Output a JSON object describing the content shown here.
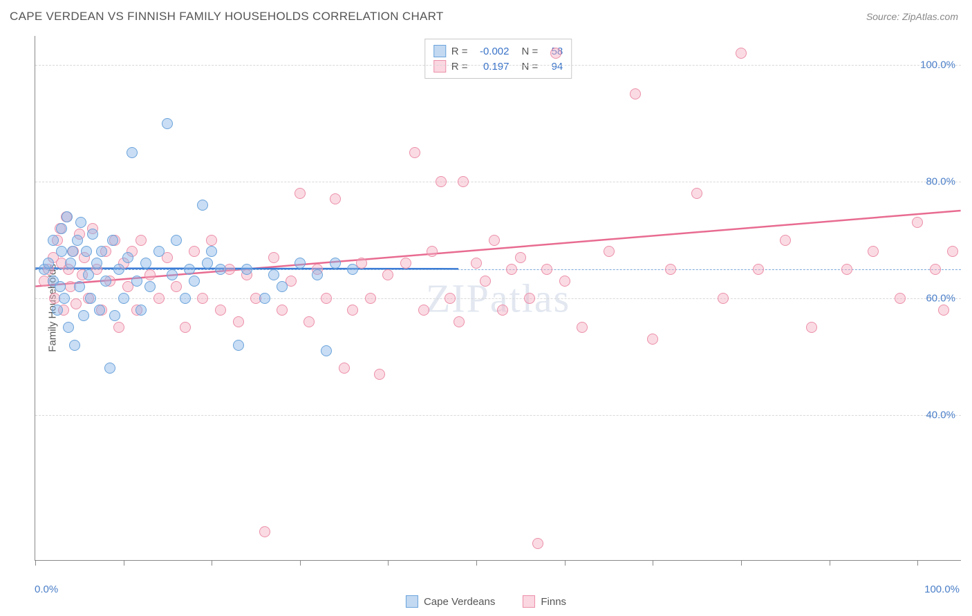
{
  "title": "CAPE VERDEAN VS FINNISH FAMILY HOUSEHOLDS CORRELATION CHART",
  "source": "Source: ZipAtlas.com",
  "watermark": "ZIPatlas",
  "chart": {
    "type": "scatter",
    "ylabel": "Family Households",
    "xlim": [
      0,
      105
    ],
    "ylim": [
      15,
      105
    ],
    "x_axis_labels": {
      "min": "0.0%",
      "max": "100.0%"
    },
    "yticks": [
      {
        "value": 40,
        "label": "40.0%"
      },
      {
        "value": 60,
        "label": "60.0%"
      },
      {
        "value": 80,
        "label": "80.0%"
      },
      {
        "value": 100,
        "label": "100.0%"
      }
    ],
    "xtick_positions": [
      0,
      10,
      20,
      30,
      40,
      50,
      60,
      70,
      80,
      90,
      100
    ],
    "dashed_reference_y": 65,
    "colors": {
      "blue_fill": "rgba(135,180,230,0.45)",
      "blue_stroke": "#6aa3db",
      "pink_fill": "rgba(245,175,195,0.45)",
      "pink_stroke": "#ec8fa8",
      "blue_line": "#3a7bd5",
      "pink_line": "#e86b91",
      "grid": "#d8d8d8",
      "axis": "#888888",
      "tick_label": "#4a7ec8",
      "background": "#ffffff"
    },
    "marker_radius": 8,
    "line_width": 2.5,
    "stats": [
      {
        "series": "blue",
        "r_label": "R =",
        "r": "-0.002",
        "n_label": "N =",
        "n": "58"
      },
      {
        "series": "pink",
        "r_label": "R =",
        "r": "0.197",
        "n_label": "N =",
        "n": "94"
      }
    ],
    "trend_lines": {
      "blue": {
        "x1": 0,
        "y1": 65.1,
        "x2": 48,
        "y2": 65.0
      },
      "pink": {
        "x1": 0,
        "y1": 62.0,
        "x2": 105,
        "y2": 75.0
      }
    },
    "legend": [
      {
        "series": "blue",
        "label": "Cape Verdeans"
      },
      {
        "series": "pink",
        "label": "Finns"
      }
    ],
    "series_blue": [
      [
        1,
        65
      ],
      [
        1.5,
        66
      ],
      [
        2,
        63
      ],
      [
        2,
        70
      ],
      [
        2.5,
        58
      ],
      [
        2.8,
        62
      ],
      [
        3,
        68
      ],
      [
        3,
        72
      ],
      [
        3.3,
        60
      ],
      [
        3.6,
        74
      ],
      [
        3.8,
        55
      ],
      [
        4,
        66
      ],
      [
        4.2,
        68
      ],
      [
        4.5,
        52
      ],
      [
        4.8,
        70
      ],
      [
        5,
        62
      ],
      [
        5.2,
        73
      ],
      [
        5.5,
        57
      ],
      [
        5.8,
        68
      ],
      [
        6,
        64
      ],
      [
        6.3,
        60
      ],
      [
        6.5,
        71
      ],
      [
        7,
        66
      ],
      [
        7.3,
        58
      ],
      [
        7.5,
        68
      ],
      [
        8,
        63
      ],
      [
        8.5,
        48
      ],
      [
        8.8,
        70
      ],
      [
        9,
        57
      ],
      [
        9.5,
        65
      ],
      [
        10,
        60
      ],
      [
        10.5,
        67
      ],
      [
        11,
        85
      ],
      [
        11.5,
        63
      ],
      [
        12,
        58
      ],
      [
        12.5,
        66
      ],
      [
        13,
        62
      ],
      [
        14,
        68
      ],
      [
        15,
        90
      ],
      [
        15.5,
        64
      ],
      [
        16,
        70
      ],
      [
        17,
        60
      ],
      [
        17.5,
        65
      ],
      [
        18,
        63
      ],
      [
        19,
        76
      ],
      [
        19.5,
        66
      ],
      [
        20,
        68
      ],
      [
        21,
        65
      ],
      [
        23,
        52
      ],
      [
        24,
        65
      ],
      [
        26,
        60
      ],
      [
        27,
        64
      ],
      [
        28,
        62
      ],
      [
        30,
        66
      ],
      [
        32,
        64
      ],
      [
        33,
        51
      ],
      [
        34,
        66
      ],
      [
        36,
        65
      ]
    ],
    "series_pink": [
      [
        1,
        63
      ],
      [
        1.5,
        65
      ],
      [
        2,
        67
      ],
      [
        2.2,
        60
      ],
      [
        2.5,
        70
      ],
      [
        2.8,
        72
      ],
      [
        3,
        66
      ],
      [
        3.2,
        58
      ],
      [
        3.5,
        74
      ],
      [
        3.8,
        65
      ],
      [
        4,
        62
      ],
      [
        4.3,
        68
      ],
      [
        4.6,
        59
      ],
      [
        5,
        71
      ],
      [
        5.3,
        64
      ],
      [
        5.6,
        67
      ],
      [
        6,
        60
      ],
      [
        6.5,
        72
      ],
      [
        7,
        65
      ],
      [
        7.5,
        58
      ],
      [
        8,
        68
      ],
      [
        8.5,
        63
      ],
      [
        9,
        70
      ],
      [
        9.5,
        55
      ],
      [
        10,
        66
      ],
      [
        10.5,
        62
      ],
      [
        11,
        68
      ],
      [
        11.5,
        58
      ],
      [
        12,
        70
      ],
      [
        13,
        64
      ],
      [
        14,
        60
      ],
      [
        15,
        67
      ],
      [
        16,
        62
      ],
      [
        17,
        55
      ],
      [
        18,
        68
      ],
      [
        19,
        60
      ],
      [
        20,
        70
      ],
      [
        21,
        58
      ],
      [
        22,
        65
      ],
      [
        23,
        56
      ],
      [
        24,
        64
      ],
      [
        25,
        60
      ],
      [
        26,
        20
      ],
      [
        27,
        67
      ],
      [
        28,
        58
      ],
      [
        29,
        63
      ],
      [
        30,
        78
      ],
      [
        31,
        56
      ],
      [
        32,
        65
      ],
      [
        33,
        60
      ],
      [
        34,
        77
      ],
      [
        35,
        48
      ],
      [
        36,
        58
      ],
      [
        37,
        66
      ],
      [
        38,
        60
      ],
      [
        39,
        47
      ],
      [
        40,
        64
      ],
      [
        42,
        66
      ],
      [
        43,
        85
      ],
      [
        44,
        58
      ],
      [
        45,
        68
      ],
      [
        46,
        80
      ],
      [
        47,
        60
      ],
      [
        48,
        56
      ],
      [
        48.5,
        80
      ],
      [
        50,
        66
      ],
      [
        51,
        63
      ],
      [
        52,
        70
      ],
      [
        53,
        58
      ],
      [
        54,
        65
      ],
      [
        55,
        67
      ],
      [
        56,
        60
      ],
      [
        57,
        18
      ],
      [
        58,
        65
      ],
      [
        59,
        102
      ],
      [
        60,
        63
      ],
      [
        62,
        55
      ],
      [
        65,
        68
      ],
      [
        68,
        95
      ],
      [
        70,
        53
      ],
      [
        72,
        65
      ],
      [
        75,
        78
      ],
      [
        78,
        60
      ],
      [
        80,
        102
      ],
      [
        82,
        65
      ],
      [
        85,
        70
      ],
      [
        88,
        55
      ],
      [
        92,
        65
      ],
      [
        95,
        68
      ],
      [
        98,
        60
      ],
      [
        100,
        73
      ],
      [
        102,
        65
      ],
      [
        103,
        58
      ],
      [
        104,
        68
      ]
    ]
  }
}
